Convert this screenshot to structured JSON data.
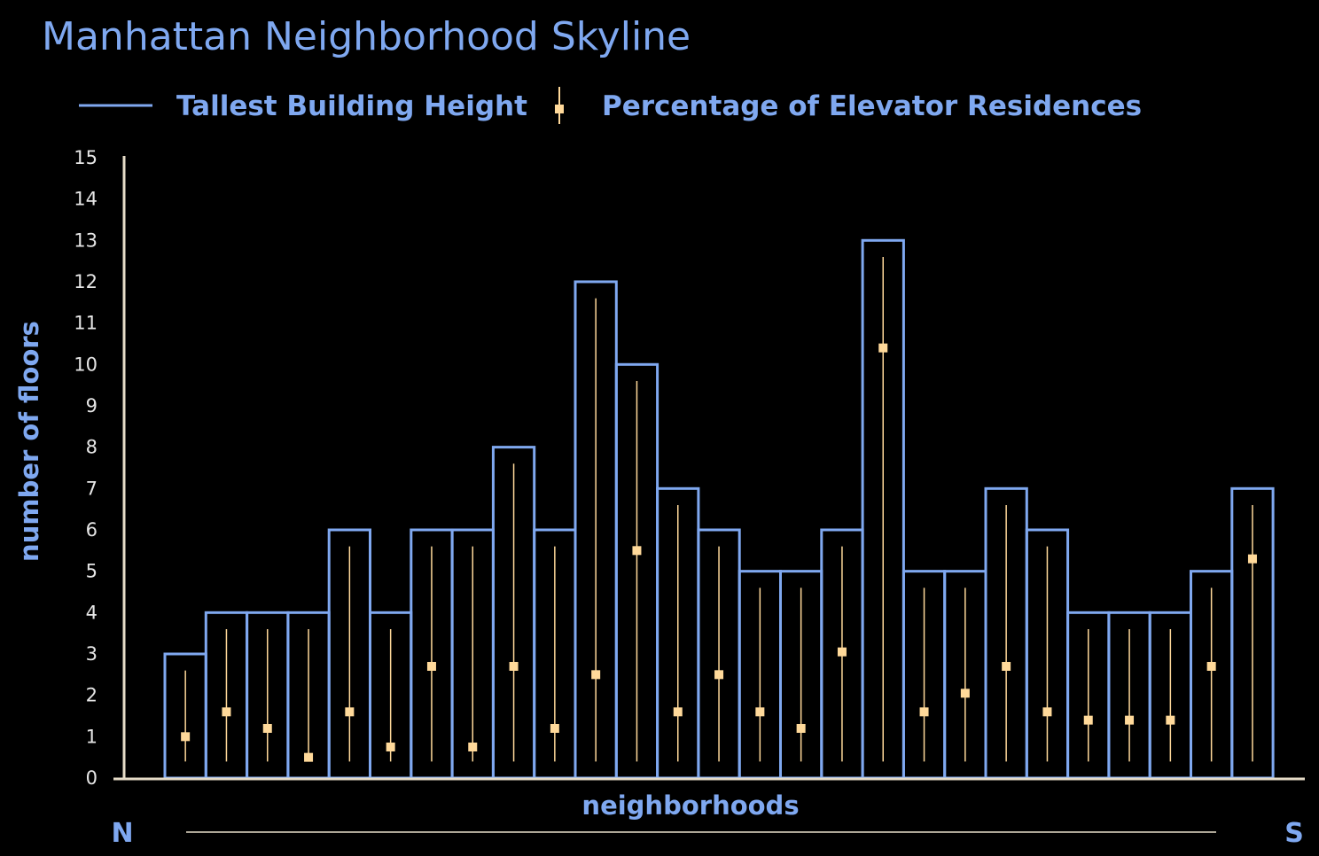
{
  "chart_data": {
    "type": "bar",
    "title": "Manhattan Neighborhood Skyline",
    "xlabel": "neighborhoods",
    "ylabel": "number of floors",
    "direction_start": "N",
    "direction_end": "S",
    "ylim": [
      0,
      15
    ],
    "yticks": [
      0,
      1,
      2,
      3,
      4,
      5,
      6,
      7,
      8,
      9,
      10,
      11,
      12,
      13,
      14,
      15
    ],
    "legend": {
      "placement": "top-left",
      "bar_series": "Tallest Building Height",
      "marker_series": "Percentage of Elevator Residences"
    },
    "series": [
      {
        "name": "Tallest Building Height",
        "values": [
          3,
          4,
          4,
          4,
          6,
          4,
          6,
          6,
          8,
          6,
          12,
          10,
          7,
          6,
          5,
          5,
          6,
          13,
          5,
          5,
          7,
          6,
          4,
          4,
          4,
          5,
          7
        ]
      },
      {
        "name": "Percentage of Elevator Residences",
        "values": [
          1.0,
          1.6,
          1.2,
          0.5,
          1.6,
          0.75,
          2.7,
          0.75,
          2.7,
          1.2,
          2.5,
          5.5,
          1.6,
          2.5,
          1.6,
          1.2,
          3.05,
          10.4,
          1.6,
          2.05,
          2.7,
          1.6,
          1.4,
          1.4,
          1.4,
          2.7,
          5.3
        ],
        "range_low": [
          0.4,
          0.4,
          0.4,
          0.4,
          0.4,
          0.4,
          0.4,
          0.4,
          0.4,
          0.4,
          0.4,
          0.4,
          0.4,
          0.4,
          0.4,
          0.4,
          0.4,
          0.4,
          0.4,
          0.4,
          0.4,
          0.4,
          0.4,
          0.4,
          0.4,
          0.4,
          0.4
        ],
        "range_high": [
          2.6,
          3.6,
          3.6,
          3.6,
          5.6,
          3.6,
          5.6,
          5.6,
          7.6,
          5.6,
          11.6,
          9.6,
          6.6,
          5.6,
          4.6,
          4.6,
          5.6,
          12.6,
          4.6,
          4.6,
          6.6,
          5.6,
          3.6,
          3.6,
          3.6,
          4.6,
          6.6
        ]
      }
    ],
    "colors": {
      "bar_stroke": "#7fa8f0",
      "marker": "#ffd99a",
      "axis": "#e6dcc8",
      "text_accent": "#7fa8f0",
      "tick_text": "#e6e6e6",
      "background": "#000000"
    }
  }
}
